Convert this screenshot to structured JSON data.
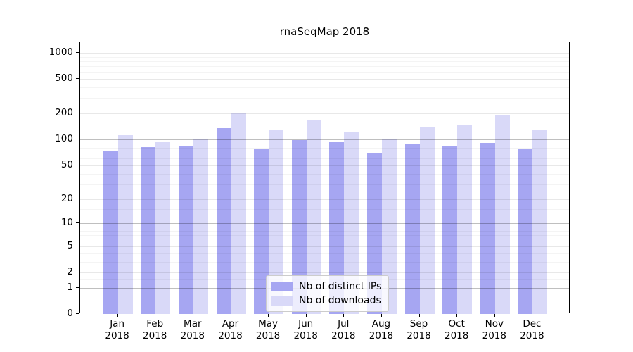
{
  "chart_data": {
    "type": "bar",
    "title": "rnaSeqMap 2018",
    "categories": [
      "Jan 2018",
      "Feb 2018",
      "Mar 2018",
      "Apr 2018",
      "May 2018",
      "Jun 2018",
      "Jul 2018",
      "Aug 2018",
      "Sep 2018",
      "Oct 2018",
      "Nov 2018",
      "Dec 2018"
    ],
    "series": [
      {
        "key": "distinct-ips",
        "name": "Nb of distinct IPs",
        "color": "#a6a6f2",
        "values": [
          74,
          81,
          83,
          136,
          79,
          98,
          93,
          69,
          88,
          83,
          92,
          77
        ]
      },
      {
        "key": "downloads",
        "name": "Nb of downloads",
        "color": "#d9d9f8",
        "values": [
          112,
          94,
          100,
          200,
          131,
          170,
          121,
          100,
          140,
          145,
          192,
          130
        ]
      }
    ],
    "xlabel": "",
    "ylabel": "",
    "yscale": "log1p",
    "yticks": [
      0,
      1,
      2,
      5,
      10,
      20,
      50,
      100,
      200,
      500,
      1000
    ],
    "minor_yticks": [
      1.5,
      3,
      4,
      6,
      7,
      8,
      9,
      15,
      30,
      40,
      60,
      70,
      80,
      90,
      150,
      300,
      400,
      600,
      700,
      800,
      900
    ],
    "dark_grid_ticks": [
      1,
      10,
      100
    ],
    "ylim": [
      0,
      1320
    ],
    "grid": "on",
    "legend_position": "lower center",
    "colors": {
      "frame": "#000000",
      "background": "#ffffff",
      "text": "#000000",
      "legend_border": "#cccccc"
    }
  }
}
